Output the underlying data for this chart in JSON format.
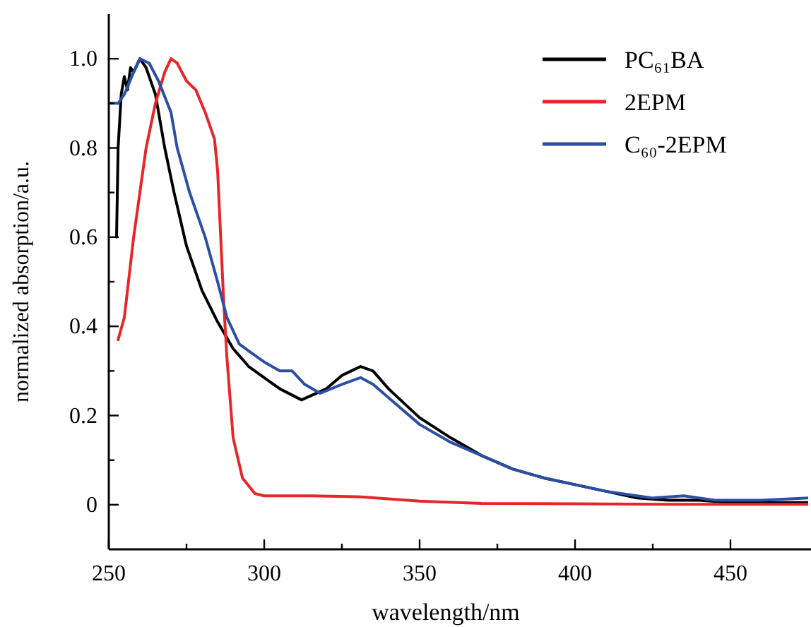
{
  "chart_data": {
    "type": "line",
    "xlabel": "wavelength/nm",
    "ylabel": "normalized absorption/a.u.",
    "xlim": [
      250,
      475
    ],
    "ylim": [
      -0.1,
      1.1
    ],
    "xticks": [
      250,
      {
        "value": 275,
        "label": null
      },
      300,
      {
        "value": 325,
        "label": null
      },
      350,
      {
        "value": 375,
        "label": null
      },
      400,
      {
        "value": 425,
        "label": null
      },
      450
    ],
    "yticks": [
      0,
      {
        "value": 0.1,
        "label": null
      },
      0.2,
      {
        "value": 0.3,
        "label": null
      },
      0.4,
      {
        "value": 0.5,
        "label": null
      },
      0.6,
      {
        "value": 0.7,
        "label": null
      },
      0.8,
      {
        "value": 0.9,
        "label": null
      },
      {
        "value": 1,
        "label": "1.0"
      }
    ],
    "legend": "top right",
    "grid": false,
    "marker": "none",
    "line_style": "solid",
    "series": [
      {
        "name": "PC₆₁BA",
        "color": "#000000",
        "x": [
          252.5,
          253,
          254,
          255,
          256,
          257,
          258,
          260,
          262,
          265,
          268,
          271,
          275,
          280,
          285,
          290,
          295,
          300,
          305,
          312,
          320,
          325,
          331,
          335,
          340,
          350,
          360,
          370,
          380,
          390,
          400,
          410,
          420,
          430,
          440,
          450,
          460,
          475
        ],
        "values": [
          0.6,
          0.8,
          0.92,
          0.96,
          0.93,
          0.98,
          0.97,
          1.0,
          0.98,
          0.92,
          0.8,
          0.7,
          0.58,
          0.48,
          0.41,
          0.35,
          0.31,
          0.285,
          0.26,
          0.235,
          0.26,
          0.29,
          0.31,
          0.3,
          0.26,
          0.195,
          0.15,
          0.11,
          0.08,
          0.06,
          0.045,
          0.03,
          0.015,
          0.01,
          0.01,
          0.005,
          0.005,
          0.005
        ]
      },
      {
        "name": "2EPM",
        "color": "#e8262a",
        "x": [
          253,
          255,
          258,
          262,
          265,
          268,
          270,
          272,
          275,
          278,
          281,
          284,
          285,
          286,
          287,
          288,
          290,
          293,
          297,
          300,
          315,
          330,
          350,
          370,
          400,
          430,
          475
        ],
        "values": [
          0.37,
          0.42,
          0.6,
          0.8,
          0.9,
          0.97,
          1.0,
          0.99,
          0.95,
          0.93,
          0.88,
          0.82,
          0.75,
          0.6,
          0.45,
          0.33,
          0.15,
          0.06,
          0.025,
          0.02,
          0.02,
          0.018,
          0.008,
          0.003,
          0.002,
          0.001,
          0.001
        ]
      },
      {
        "name": "C₆₀-2EPM",
        "color": "#2c4fa3",
        "x": [
          250,
          253,
          255,
          258,
          260,
          263,
          266,
          270,
          272,
          276,
          281,
          285,
          288,
          292,
          296,
          300,
          305,
          309,
          313,
          318,
          325,
          331,
          335,
          340,
          350,
          360,
          370,
          380,
          390,
          400,
          410,
          420,
          425,
          435,
          445,
          450,
          460,
          475
        ],
        "values": [
          0.9,
          0.9,
          0.92,
          0.97,
          1.0,
          0.99,
          0.95,
          0.88,
          0.8,
          0.7,
          0.6,
          0.5,
          0.42,
          0.36,
          0.34,
          0.32,
          0.3,
          0.3,
          0.27,
          0.25,
          0.27,
          0.285,
          0.27,
          0.24,
          0.18,
          0.14,
          0.11,
          0.08,
          0.06,
          0.045,
          0.03,
          0.02,
          0.015,
          0.02,
          0.01,
          0.01,
          0.01,
          0.015
        ]
      }
    ]
  }
}
